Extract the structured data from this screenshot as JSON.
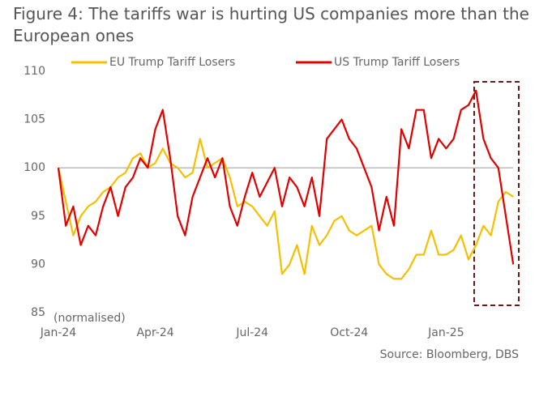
{
  "chart_data": {
    "type": "line",
    "title": "Figure 4: The tariffs war is hurting US companies more than the European ones",
    "annotation": "(normalised)",
    "source": "Source: Bloomberg, DBS",
    "categories": [
      "Jan-24",
      null,
      null,
      null,
      null,
      null,
      null,
      null,
      null,
      null,
      null,
      null,
      null,
      "Apr-24",
      null,
      null,
      null,
      null,
      null,
      null,
      null,
      null,
      null,
      null,
      null,
      null,
      "Jul-24",
      null,
      null,
      null,
      null,
      null,
      null,
      null,
      null,
      null,
      null,
      null,
      null,
      "Oct-24",
      null,
      null,
      null,
      null,
      null,
      null,
      null,
      null,
      null,
      null,
      null,
      null,
      "Jan-25",
      null,
      null,
      null,
      null,
      null,
      null,
      null,
      null,
      null
    ],
    "series": [
      {
        "name": "EU Trump Tariff Losers",
        "color": "#f5c000",
        "values": [
          100,
          96.5,
          93,
          95,
          96,
          96.5,
          97.5,
          98,
          99,
          99.5,
          101,
          101.5,
          100,
          100.5,
          102,
          100.5,
          100,
          99,
          99.5,
          103,
          100,
          100.5,
          101,
          99,
          96,
          96.5,
          96,
          95,
          94,
          95.5,
          89,
          90,
          92,
          89,
          94,
          92,
          93,
          94.5,
          95,
          93.5,
          93,
          93.5,
          94,
          90,
          89,
          88.5,
          88.5,
          89.5,
          91,
          91,
          93.5,
          91,
          91,
          91.5,
          93,
          90.5,
          92,
          94,
          93,
          96.5,
          97.5,
          97
        ]
      },
      {
        "name": "US Trump Tariff Losers",
        "color": "#e00000",
        "values": [
          100,
          94,
          96,
          92,
          94,
          93,
          96,
          98,
          95,
          98,
          99,
          101,
          100,
          104,
          106,
          101,
          95,
          93,
          97,
          99,
          101,
          99,
          101,
          96,
          94,
          97,
          99.5,
          97,
          98.5,
          100,
          96,
          99,
          98,
          96,
          99,
          95,
          103,
          104,
          105,
          103,
          102,
          100,
          98,
          93.5,
          97,
          94,
          104,
          102,
          106,
          106,
          101,
          103,
          102,
          103,
          106,
          106.5,
          108,
          103,
          101,
          100,
          95,
          90
        ]
      }
    ],
    "ylim": [
      85,
      110
    ],
    "yticks": [
      85,
      90,
      95,
      100,
      105,
      110
    ],
    "reference_line": 100
  }
}
